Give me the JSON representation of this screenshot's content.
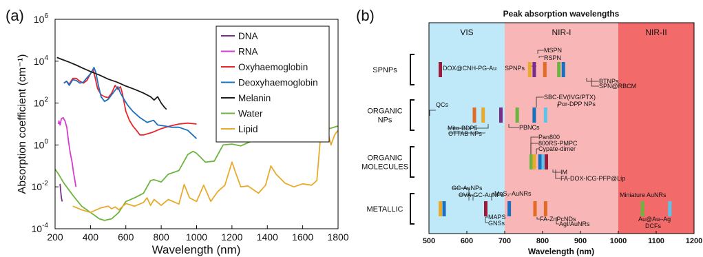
{
  "chart_data": [
    {
      "panel": "(a)",
      "type": "line",
      "title": "",
      "xlabel": "Wavelength (nm)",
      "ylabel": "Absorption coefficient (cm⁻¹)",
      "xlim": [
        200,
        1800
      ],
      "ylim_log10": [
        -4,
        6
      ],
      "log_y": true,
      "grid": false,
      "legend_position": "top-right",
      "x_ticks": [
        "200",
        "400",
        "600",
        "800",
        "1000",
        "1200",
        "1400",
        "1600",
        "1800"
      ],
      "y_ticks": [
        {
          "base": "10",
          "exp": "6"
        },
        {
          "base": "10",
          "exp": "4"
        },
        {
          "base": "10",
          "exp": "2"
        },
        {
          "base": "10",
          "exp": "0"
        },
        {
          "base": "10",
          "exp": "-2"
        },
        {
          "base": "10",
          "exp": "-4"
        }
      ],
      "series": [
        {
          "name": "DNA",
          "color": "#7b2d8e",
          "points": [
            [
              228,
              0.014
            ],
            [
              232,
              0.006
            ],
            [
              236,
              0.003
            ],
            [
              240,
              0.002
            ]
          ]
        },
        {
          "name": "RNA",
          "color": "#d63bd1",
          "points": [
            [
              218,
              10
            ],
            [
              222,
              14
            ],
            [
              228,
              9
            ],
            [
              236,
              18
            ],
            [
              246,
              20
            ],
            [
              256,
              14
            ],
            [
              266,
              7
            ],
            [
              276,
              1.5
            ],
            [
              286,
              0.4
            ],
            [
              296,
              0.15
            ],
            [
              304,
              0.05
            ],
            [
              312,
              0.02
            ],
            [
              318,
              0.01
            ]
          ]
        },
        {
          "name": "Oxyhaemoglobin",
          "color": "#e8262a",
          "points": [
            [
              250,
              900
            ],
            [
              265,
              1100
            ],
            [
              280,
              800
            ],
            [
              300,
              1500
            ],
            [
              320,
              1500
            ],
            [
              340,
              1100
            ],
            [
              360,
              900
            ],
            [
              380,
              1200
            ],
            [
              400,
              2500
            ],
            [
              415,
              4000
            ],
            [
              425,
              1800
            ],
            [
              440,
              500
            ],
            [
              460,
              250
            ],
            [
              480,
              200
            ],
            [
              500,
              180
            ],
            [
              520,
              300
            ],
            [
              540,
              700
            ],
            [
              555,
              450
            ],
            [
              570,
              600
            ],
            [
              580,
              300
            ],
            [
              600,
              40
            ],
            [
              620,
              15
            ],
            [
              640,
              8
            ],
            [
              660,
              5
            ],
            [
              680,
              3
            ],
            [
              700,
              3
            ],
            [
              750,
              4
            ],
            [
              800,
              6
            ],
            [
              850,
              8
            ],
            [
              900,
              10
            ],
            [
              950,
              11
            ],
            [
              1000,
              10
            ]
          ]
        },
        {
          "name": "Deoxyhaemoglobin",
          "color": "#1a6fbf",
          "points": [
            [
              250,
              900
            ],
            [
              265,
              1100
            ],
            [
              280,
              700
            ],
            [
              300,
              1300
            ],
            [
              320,
              1200
            ],
            [
              340,
              900
            ],
            [
              360,
              1000
            ],
            [
              380,
              1600
            ],
            [
              400,
              2500
            ],
            [
              420,
              5000
            ],
            [
              430,
              3000
            ],
            [
              445,
              700
            ],
            [
              460,
              200
            ],
            [
              480,
              120
            ],
            [
              500,
              150
            ],
            [
              520,
              250
            ],
            [
              555,
              600
            ],
            [
              570,
              300
            ],
            [
              590,
              150
            ],
            [
              610,
              80
            ],
            [
              640,
              40
            ],
            [
              680,
              20
            ],
            [
              720,
              12
            ],
            [
              757,
              15
            ],
            [
              780,
              9
            ],
            [
              820,
              8
            ],
            [
              860,
              7
            ],
            [
              900,
              7
            ],
            [
              950,
              5
            ],
            [
              1000,
              2
            ]
          ]
        },
        {
          "name": "Melanin",
          "color": "#1a1a1a",
          "points": [
            [
              210,
              15000
            ],
            [
              240,
              12000
            ],
            [
              280,
              9000
            ],
            [
              320,
              6500
            ],
            [
              360,
              4500
            ],
            [
              400,
              3200
            ],
            [
              450,
              2200
            ],
            [
              500,
              1400
            ],
            [
              550,
              1000
            ],
            [
              600,
              650
            ],
            [
              650,
              450
            ],
            [
              700,
              300
            ],
            [
              740,
              200
            ],
            [
              760,
              140
            ],
            [
              780,
              200
            ],
            [
              800,
              100
            ],
            [
              820,
              60
            ],
            [
              830,
              50
            ]
          ]
        },
        {
          "name": "Water",
          "color": "#6db33f",
          "points": [
            [
              200,
              0.07
            ],
            [
              220,
              0.04
            ],
            [
              250,
              0.015
            ],
            [
              300,
              0.004
            ],
            [
              350,
              0.0012
            ],
            [
              400,
              0.0006
            ],
            [
              450,
              0.0003
            ],
            [
              480,
              0.00025
            ],
            [
              520,
              0.0003
            ],
            [
              560,
              0.0006
            ],
            [
              600,
              0.002
            ],
            [
              650,
              0.003
            ],
            [
              700,
              0.005
            ],
            [
              740,
              0.02
            ],
            [
              760,
              0.022
            ],
            [
              800,
              0.017
            ],
            [
              840,
              0.04
            ],
            [
              900,
              0.06
            ],
            [
              950,
              0.35
            ],
            [
              980,
              0.5
            ],
            [
              1000,
              0.4
            ],
            [
              1050,
              0.15
            ],
            [
              1100,
              0.17
            ],
            [
              1150,
              1.0
            ],
            [
              1200,
              1.1
            ],
            [
              1250,
              0.9
            ],
            [
              1300,
              1.4
            ],
            [
              1350,
              4
            ],
            [
              1400,
              15
            ],
            [
              1450,
              30
            ],
            [
              1500,
              22
            ],
            [
              1550,
              10
            ],
            [
              1600,
              6
            ],
            [
              1650,
              4
            ],
            [
              1700,
              5
            ],
            [
              1750,
              6
            ],
            [
              1800,
              8
            ]
          ]
        },
        {
          "name": "Lipid",
          "color": "#e8aa2a",
          "points": [
            [
              300,
              0.0012
            ],
            [
              350,
              0.0008
            ],
            [
              400,
              0.0006
            ],
            [
              460,
              0.001
            ],
            [
              500,
              0.0012
            ],
            [
              520,
              0.0009
            ],
            [
              540,
              0.0011
            ],
            [
              560,
              0.0008
            ],
            [
              600,
              0.0016
            ],
            [
              650,
              0.0012
            ],
            [
              700,
              0.0018
            ],
            [
              720,
              0.003
            ],
            [
              740,
              0.0013
            ],
            [
              760,
              0.0025
            ],
            [
              800,
              0.0013
            ],
            [
              840,
              0.0025
            ],
            [
              900,
              0.0015
            ],
            [
              930,
              0.013
            ],
            [
              960,
              0.003
            ],
            [
              1000,
              0.002
            ],
            [
              1040,
              0.012
            ],
            [
              1080,
              0.002
            ],
            [
              1120,
              0.006
            ],
            [
              1160,
              0.012
            ],
            [
              1200,
              0.15
            ],
            [
              1220,
              0.05
            ],
            [
              1250,
              0.01
            ],
            [
              1290,
              0.011
            ],
            [
              1350,
              0.005
            ],
            [
              1390,
              0.012
            ],
            [
              1420,
              0.1
            ],
            [
              1450,
              0.04
            ],
            [
              1500,
              0.015
            ],
            [
              1550,
              0.01
            ],
            [
              1600,
              0.014
            ],
            [
              1650,
              0.012
            ],
            [
              1680,
              0.02
            ],
            [
              1700,
              2
            ],
            [
              1720,
              10
            ],
            [
              1740,
              5
            ],
            [
              1760,
              1
            ],
            [
              1780,
              3
            ],
            [
              1800,
              5
            ]
          ]
        }
      ]
    },
    {
      "panel": "(b)",
      "type": "bar",
      "title": "Peak absorption wavelengths",
      "xlabel": "Wavelength (nm)",
      "xlim": [
        500,
        1200
      ],
      "x_ticks": [
        "500",
        "600",
        "700",
        "800",
        "900",
        "1000",
        "1100",
        "1200"
      ],
      "grid": false,
      "bands": [
        {
          "label": "VIS",
          "start": 500,
          "end": 700,
          "color": "#bfe8f8"
        },
        {
          "label": "NIR-I",
          "start": 700,
          "end": 1000,
          "color": "#f8b6b6"
        },
        {
          "label": "NIR-II",
          "start": 1000,
          "end": 1200,
          "color": "#f26a6a"
        }
      ],
      "categories": [
        "SPNPs",
        "ORGANIC\nNPs",
        "ORGANIC\nMOLECULES",
        "METALLIC"
      ],
      "bars": [
        {
          "group": 0,
          "wavelength": 530,
          "color": "#9b1b3b"
        },
        {
          "group": 0,
          "wavelength": 766,
          "color": "#e8aa2a"
        },
        {
          "group": 0,
          "wavelength": 778,
          "color": "#7b2d8e"
        },
        {
          "group": 0,
          "wavelength": 806,
          "color": "#e26b26"
        },
        {
          "group": 0,
          "wavelength": 843,
          "color": "#6db33f"
        },
        {
          "group": 0,
          "wavelength": 855,
          "color": "#1a6fbf"
        },
        {
          "group": 1,
          "wavelength": 620,
          "color": "#e26b26"
        },
        {
          "group": 1,
          "wavelength": 643,
          "color": "#e8aa2a"
        },
        {
          "group": 1,
          "wavelength": 690,
          "color": "#7b2d8e"
        },
        {
          "group": 1,
          "wavelength": 733,
          "color": "#6db33f"
        },
        {
          "group": 1,
          "wavelength": 778,
          "color": "#1a6fbf"
        },
        {
          "group": 1,
          "wavelength": 808,
          "color": "#5fc3e8"
        },
        {
          "group": 2,
          "wavelength": 770,
          "color": "#6db33f"
        },
        {
          "group": 2,
          "wavelength": 778,
          "color": "#e8aa2a"
        },
        {
          "group": 2,
          "wavelength": 793,
          "color": "#1a6fbf"
        },
        {
          "group": 2,
          "wavelength": 802,
          "color": "#5fc3e8"
        },
        {
          "group": 2,
          "wavelength": 810,
          "color": "#9b1b3b"
        },
        {
          "group": 3,
          "wavelength": 530,
          "color": "#e8aa2a"
        },
        {
          "group": 3,
          "wavelength": 540,
          "color": "#1a6fbf"
        },
        {
          "group": 3,
          "wavelength": 650,
          "color": "#9b1b3b"
        },
        {
          "group": 3,
          "wavelength": 712,
          "color": "#1a6fbf"
        },
        {
          "group": 3,
          "wavelength": 780,
          "color": "#e26b26"
        },
        {
          "group": 3,
          "wavelength": 808,
          "color": "#e26b26"
        },
        {
          "group": 3,
          "wavelength": 1064,
          "color": "#6db33f"
        },
        {
          "group": 3,
          "wavelength": 1136,
          "color": "#5fc3e8"
        }
      ],
      "annotations": [
        {
          "text": "DOX@CNH-PG-Au"
        },
        {
          "text": "SPNPs"
        },
        {
          "text": "MSPN"
        },
        {
          "text": "RSPN"
        },
        {
          "text": "BTNPs"
        },
        {
          "text": "SPN@RBCM"
        },
        {
          "text": "QCs"
        },
        {
          "text": "Mito-BDP5"
        },
        {
          "text": "OTTAB NPs"
        },
        {
          "text": "PBNCs"
        },
        {
          "text": "SBC-EV(IVG/PTX)"
        },
        {
          "text": "Por-DPP NPs"
        },
        {
          "text": "Pan800"
        },
        {
          "text": "800RS-PMPC"
        },
        {
          "text": "Cypate-dimer"
        },
        {
          "text": "IM"
        },
        {
          "text": "FA-DOX-ICG-PFP@Lip"
        },
        {
          "text": "GC-AuNPs"
        },
        {
          "text": "OVA-GC-AuNPs"
        },
        {
          "text": "MAPS"
        },
        {
          "text": "GNSs"
        },
        {
          "text": "MoS₂-AuNRs"
        },
        {
          "text": "FA-ZnPcNDs"
        },
        {
          "text": "AgI/AuNRs"
        },
        {
          "text": "Miniature AuNRs"
        },
        {
          "text": "Au@Au–Ag"
        },
        {
          "text": "DCFs"
        }
      ]
    }
  ]
}
